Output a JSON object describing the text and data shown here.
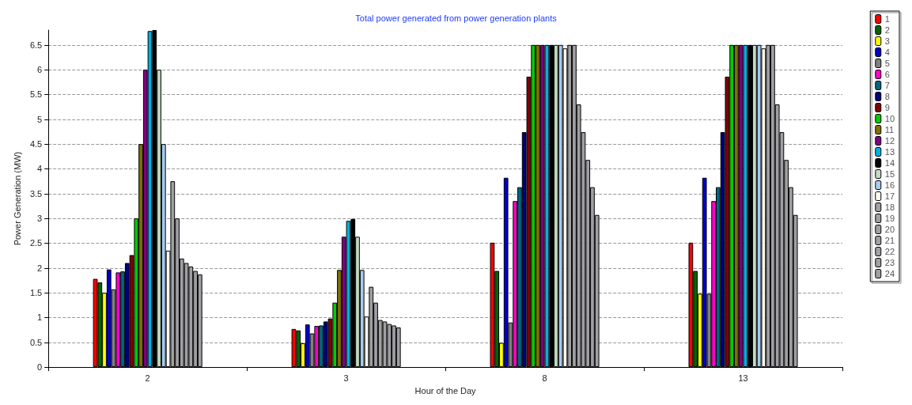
{
  "chart_data": {
    "type": "bar",
    "title": "Total power generated from power generation plants",
    "xlabel": "Hour of the Day",
    "ylabel": "Power Generation (MW)",
    "categories": [
      "2",
      "3",
      "8",
      "13"
    ],
    "series": [
      {
        "name": "1",
        "color": "#ff0000",
        "values": [
          1.78,
          0.77,
          2.51,
          2.51
        ]
      },
      {
        "name": "2",
        "color": "#006600",
        "values": [
          1.71,
          0.74,
          1.94,
          1.94
        ]
      },
      {
        "name": "3",
        "color": "#ffff00",
        "values": [
          1.5,
          0.48,
          0.49,
          1.48
        ]
      },
      {
        "name": "4",
        "color": "#0000cc",
        "values": [
          1.97,
          0.86,
          3.82,
          3.82
        ]
      },
      {
        "name": "5",
        "color": "#808080",
        "values": [
          1.57,
          0.68,
          0.9,
          1.48
        ]
      },
      {
        "name": "6",
        "color": "#ff00cc",
        "values": [
          1.91,
          0.83,
          3.35,
          3.35
        ]
      },
      {
        "name": "7",
        "color": "#006680",
        "values": [
          1.93,
          0.84,
          3.63,
          3.63
        ]
      },
      {
        "name": "8",
        "color": "#000080",
        "values": [
          2.1,
          0.92,
          4.74,
          4.74
        ]
      },
      {
        "name": "9",
        "color": "#800000",
        "values": [
          2.26,
          0.98,
          5.86,
          5.86
        ]
      },
      {
        "name": "10",
        "color": "#00cc00",
        "values": [
          3.0,
          1.3,
          6.5,
          6.5
        ]
      },
      {
        "name": "11",
        "color": "#807000",
        "values": [
          4.5,
          1.96,
          6.5,
          6.5
        ]
      },
      {
        "name": "12",
        "color": "#800080",
        "values": [
          6.0,
          2.63,
          6.5,
          6.5
        ]
      },
      {
        "name": "13",
        "color": "#00b0e0",
        "values": [
          6.78,
          2.95,
          6.5,
          6.5
        ]
      },
      {
        "name": "14",
        "color": "#000000",
        "values": [
          6.8,
          2.99,
          6.5,
          6.5
        ]
      },
      {
        "name": "15",
        "color": "#c0dcc0",
        "values": [
          6.0,
          2.63,
          6.5,
          6.5
        ]
      },
      {
        "name": "16",
        "color": "#a6caf0",
        "values": [
          4.5,
          1.96,
          6.5,
          6.5
        ]
      },
      {
        "name": "17",
        "color": "#fffbf0",
        "values": [
          2.35,
          1.02,
          6.43,
          6.43
        ]
      },
      {
        "name": "18",
        "color": "#a0a0a4",
        "values": [
          3.75,
          1.62,
          6.5,
          6.5
        ]
      },
      {
        "name": "19",
        "color": "#a0a0a4",
        "values": [
          3.0,
          1.3,
          6.5,
          6.5
        ]
      },
      {
        "name": "20",
        "color": "#a0a0a4",
        "values": [
          2.19,
          0.95,
          5.3,
          5.3
        ]
      },
      {
        "name": "21",
        "color": "#a0a0a4",
        "values": [
          2.1,
          0.92,
          4.74,
          4.74
        ]
      },
      {
        "name": "22",
        "color": "#a0a0a4",
        "values": [
          2.03,
          0.87,
          4.18,
          4.18
        ]
      },
      {
        "name": "23",
        "color": "#a0a0a4",
        "values": [
          1.94,
          0.84,
          3.63,
          3.63
        ]
      },
      {
        "name": "24",
        "color": "#a0a0a4",
        "values": [
          1.87,
          0.8,
          3.07,
          3.07
        ]
      }
    ],
    "ylim": [
      0,
      6.8
    ],
    "yticks": [
      0,
      0.5,
      1,
      1.5,
      2,
      2.5,
      3,
      3.5,
      4,
      4.5,
      5,
      5.5,
      6,
      6.5
    ],
    "grid": "y",
    "legend": "right"
  }
}
